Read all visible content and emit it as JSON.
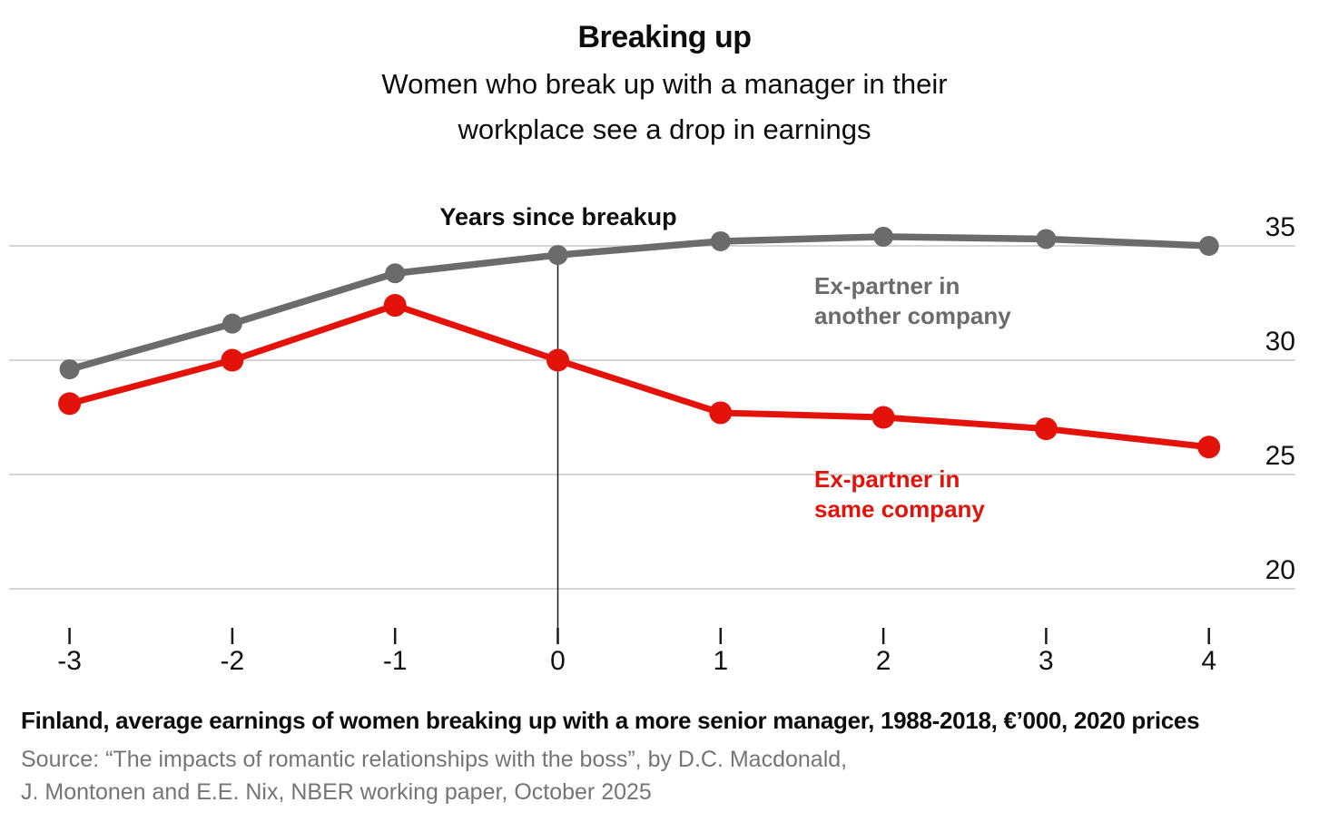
{
  "header": {
    "title": "Breaking up",
    "subtitle_lines": [
      "Women who break up with a manager in their",
      "workplace see a drop in earnings"
    ]
  },
  "chart_data": {
    "type": "line",
    "x_axis_title": "Years since breakup",
    "x": [
      -3,
      -2,
      -1,
      0,
      1,
      2,
      3,
      4
    ],
    "x_tick_labels": [
      "-3",
      "-2",
      "-1",
      "0",
      "1",
      "2",
      "3",
      "4"
    ],
    "y_ticks": [
      20,
      25,
      30,
      35
    ],
    "ylim": [
      18.5,
      36.5
    ],
    "grid": "horizontal",
    "legend_position": "inline-right",
    "event_line_x": 0,
    "series": [
      {
        "name": "Ex-partner in another company",
        "label_line1": "Ex-partner in",
        "label_line2": "another company",
        "color": "#6b6b6b",
        "values": [
          29.6,
          31.6,
          33.8,
          34.6,
          35.2,
          35.4,
          35.3,
          35.0
        ]
      },
      {
        "name": "Ex-partner in same company",
        "label_line1": "Ex-partner in",
        "label_line2": "same company",
        "color": "#e3120b",
        "values": [
          28.1,
          30.0,
          32.4,
          30.0,
          27.7,
          27.5,
          27.0,
          26.2
        ]
      }
    ]
  },
  "footer": {
    "note": "Finland, average earnings of women breaking up with a more senior manager, 1988-2018, €’000, 2020 prices",
    "source_lines": [
      "Source: “The impacts of romantic relationships with the boss”, by D.C. Macdonald,",
      "J. Montonen and E.E. Nix, NBER working paper, October 2025"
    ]
  },
  "colors": {
    "series_gray": "#6b6b6b",
    "series_red": "#e3120b",
    "gridline": "#d6d6d6",
    "axis_tick": "#1a1a1a",
    "event_line": "#1a1a1a",
    "axis_text": "#111111",
    "source_text": "#757575",
    "background": "#ffffff"
  }
}
